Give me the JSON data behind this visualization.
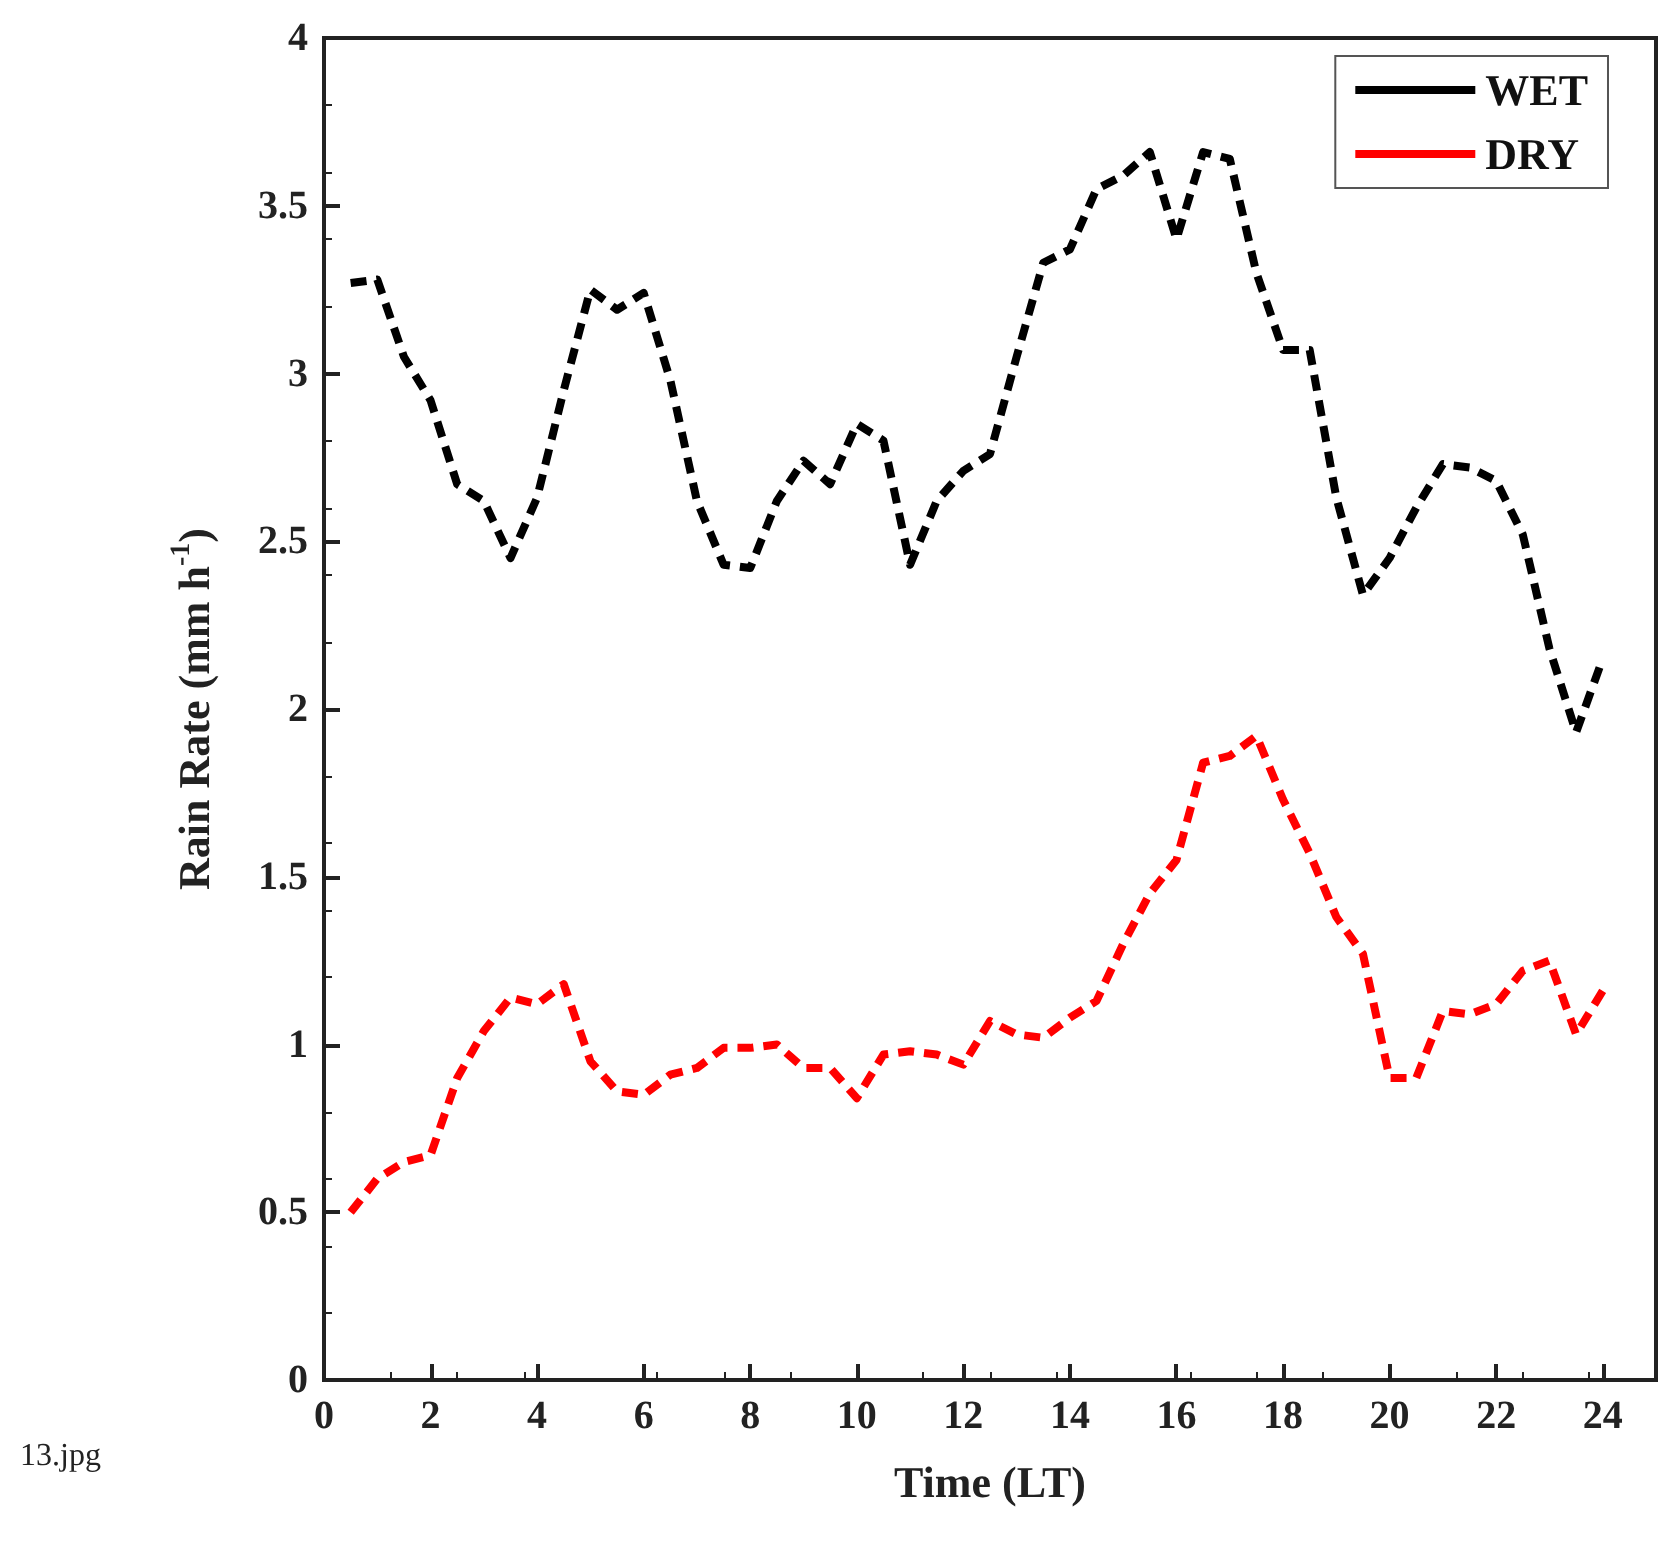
{
  "chart_data": {
    "type": "line",
    "xlabel": "Time (LT)",
    "ylabel": "Rain Rate (mm h$^{-1}$)",
    "x": [
      0.5,
      1,
      1.5,
      2,
      2.5,
      3,
      3.5,
      4,
      4.5,
      5,
      5.5,
      6,
      6.5,
      7,
      7.5,
      8,
      8.5,
      9,
      9.5,
      10,
      10.5,
      11,
      11.5,
      12,
      12.5,
      13,
      13.5,
      14,
      14.5,
      15,
      15.5,
      16,
      16.5,
      17,
      17.5,
      18,
      18.5,
      19,
      19.5,
      20,
      20.5,
      21,
      21.5,
      22,
      22.5,
      23,
      23.5,
      24
    ],
    "series": [
      {
        "name": "WET",
        "color": "#000000",
        "values": [
          3.27,
          3.28,
          3.05,
          2.92,
          2.67,
          2.62,
          2.45,
          2.63,
          2.95,
          3.25,
          3.19,
          3.24,
          2.98,
          2.62,
          2.43,
          2.42,
          2.62,
          2.74,
          2.67,
          2.85,
          2.8,
          2.43,
          2.62,
          2.71,
          2.76,
          3.05,
          3.33,
          3.37,
          3.55,
          3.59,
          3.66,
          3.4,
          3.66,
          3.64,
          3.3,
          3.07,
          3.07,
          2.63,
          2.34,
          2.45,
          2.6,
          2.73,
          2.72,
          2.68,
          2.52,
          2.18,
          1.93,
          2.15
        ]
      },
      {
        "name": "DRY",
        "color": "#ff0000",
        "values": [
          0.5,
          0.6,
          0.65,
          0.67,
          0.9,
          1.04,
          1.14,
          1.12,
          1.18,
          0.95,
          0.86,
          0.85,
          0.91,
          0.93,
          0.99,
          0.99,
          1.0,
          0.93,
          0.93,
          0.84,
          0.97,
          0.98,
          0.97,
          0.94,
          1.07,
          1.03,
          1.02,
          1.08,
          1.13,
          1.3,
          1.45,
          1.55,
          1.84,
          1.86,
          1.92,
          1.73,
          1.57,
          1.38,
          1.27,
          0.9,
          0.9,
          1.1,
          1.09,
          1.12,
          1.22,
          1.25,
          1.03,
          1.16
        ]
      }
    ],
    "xlim": [
      0,
      25
    ],
    "xticks": [
      0,
      2,
      4,
      6,
      8,
      10,
      12,
      14,
      16,
      18,
      20,
      22,
      24
    ],
    "ylim": [
      0,
      4
    ],
    "yticks": [
      0,
      0.5,
      1,
      1.5,
      2,
      2.5,
      3,
      3.5,
      4
    ],
    "legend": "top right",
    "marker": "none",
    "line_style": "dashed",
    "grid": false,
    "annotations": [
      "13.jpg"
    ]
  }
}
